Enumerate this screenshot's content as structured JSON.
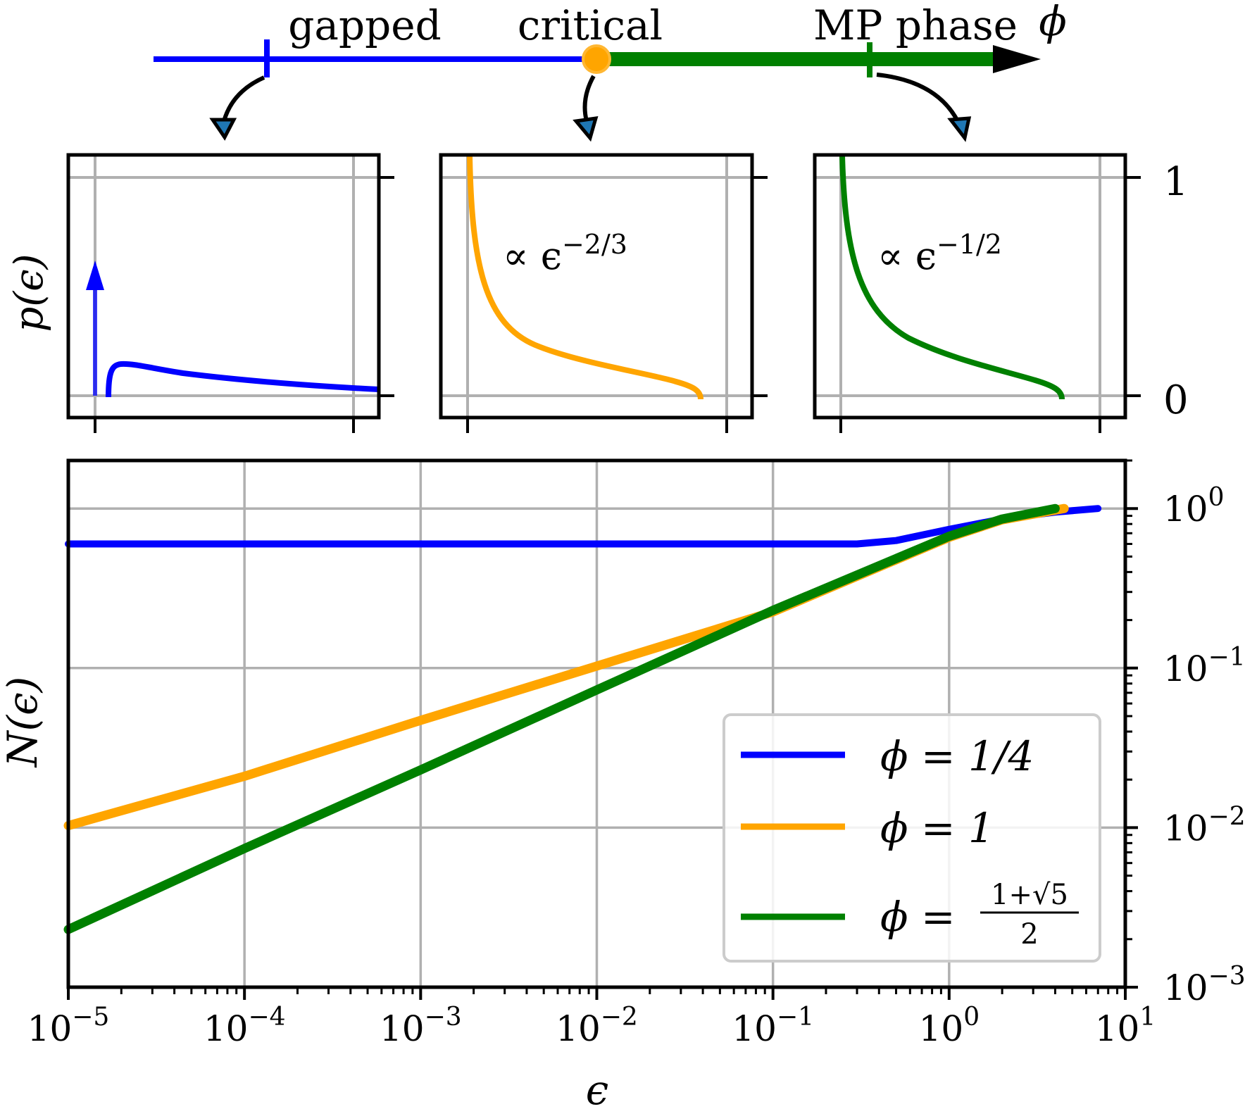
{
  "phase_diagram": {
    "labels": [
      "gapped",
      "critical",
      "MP phase"
    ],
    "axis_symbol": "ϕ",
    "colors": {
      "gapped": "#0000ff",
      "critical": "#ffa500",
      "mp": "#008000"
    }
  },
  "insets": {
    "ylabel": "p(ϵ)",
    "yticks": [
      "0",
      "1"
    ],
    "panels": [
      {
        "annotation": ""
      },
      {
        "annotation": "∝ ϵ",
        "exponent": "−2/3"
      },
      {
        "annotation": "∝ ϵ",
        "exponent": "−1/2"
      }
    ]
  },
  "chart_data": {
    "type": "line",
    "xlabel": "ϵ",
    "ylabel": "N(ϵ)",
    "xscale": "log",
    "yscale": "log",
    "xlim": [
      1e-05,
      10
    ],
    "ylim": [
      0.001,
      2
    ],
    "grid": true,
    "legend_position": "lower-right",
    "x_ticks": [
      {
        "base": "10",
        "exp": "−5"
      },
      {
        "base": "10",
        "exp": "−4"
      },
      {
        "base": "10",
        "exp": "−3"
      },
      {
        "base": "10",
        "exp": "−2"
      },
      {
        "base": "10",
        "exp": "−1"
      },
      {
        "base": "10",
        "exp": "0"
      },
      {
        "base": "10",
        "exp": "1"
      }
    ],
    "y_ticks": [
      {
        "base": "10",
        "exp": "0"
      },
      {
        "base": "10",
        "exp": "−1"
      },
      {
        "base": "10",
        "exp": "−2"
      },
      {
        "base": "10",
        "exp": "−3"
      }
    ],
    "series": [
      {
        "name": "ϕ = 1/4",
        "color": "#0000ff",
        "x": [
          1e-05,
          0.0001,
          0.001,
          0.01,
          0.1,
          0.3,
          0.5,
          1,
          2,
          4,
          7
        ],
        "y": [
          0.6,
          0.6,
          0.6,
          0.6,
          0.6,
          0.6,
          0.63,
          0.74,
          0.86,
          0.95,
          1.0
        ]
      },
      {
        "name": "ϕ = 1",
        "color": "#ffa500",
        "x": [
          1e-05,
          0.0001,
          0.001,
          0.01,
          0.1,
          1,
          2,
          4.5
        ],
        "y": [
          0.0103,
          0.021,
          0.047,
          0.103,
          0.225,
          0.66,
          0.85,
          1.0
        ]
      },
      {
        "name": "ϕ = (1+√5)/2",
        "color": "#008000",
        "x": [
          1e-05,
          0.0001,
          0.001,
          0.01,
          0.1,
          1,
          2,
          4
        ],
        "y": [
          0.0023,
          0.0074,
          0.023,
          0.073,
          0.23,
          0.67,
          0.86,
          1.0
        ]
      }
    ]
  },
  "legend": {
    "entries": [
      {
        "prefix": "ϕ = 1/4"
      },
      {
        "prefix": "ϕ = 1"
      },
      {
        "prefix": "ϕ = ",
        "num": "1+√5",
        "den": "2"
      }
    ]
  }
}
